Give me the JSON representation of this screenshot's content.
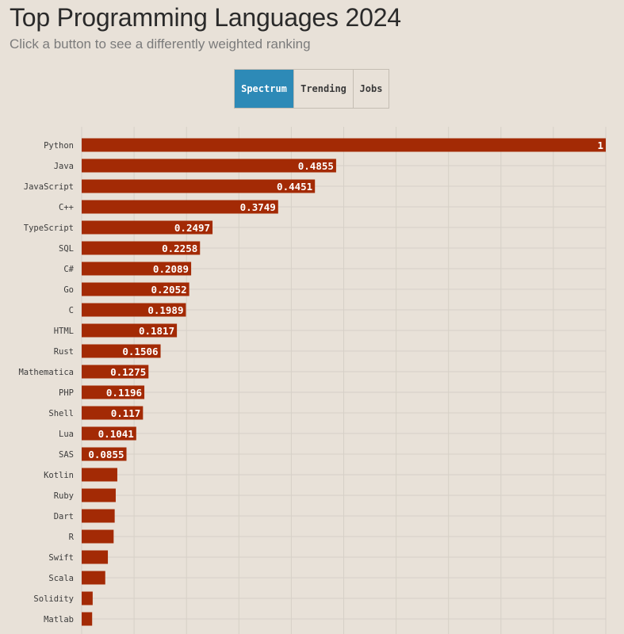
{
  "chart_data": {
    "type": "bar",
    "orientation": "horizontal",
    "title": "Top Programming Languages 2024",
    "subtitle": "Click a button to see a differently weighted ranking",
    "categories": [
      "Python",
      "Java",
      "JavaScript",
      "C++",
      "TypeScript",
      "SQL",
      "C#",
      "Go",
      "C",
      "HTML",
      "Rust",
      "Mathematica",
      "PHP",
      "Shell",
      "Lua",
      "SAS",
      "Kotlin",
      "Ruby",
      "Dart",
      "R",
      "Swift",
      "Scala",
      "Solidity",
      "Matlab"
    ],
    "values": [
      1,
      0.4855,
      0.4451,
      0.3749,
      0.2497,
      0.2258,
      0.2089,
      0.2052,
      0.1989,
      0.1817,
      0.1506,
      0.1275,
      0.1196,
      0.117,
      0.1041,
      0.0855,
      0.068,
      0.065,
      0.063,
      0.061,
      0.05,
      0.045,
      0.021,
      0.02
    ],
    "data_labels": [
      "1",
      "0.4855",
      "0.4451",
      "0.3749",
      "0.2497",
      "0.2258",
      "0.2089",
      "0.2052",
      "0.1989",
      "0.1817",
      "0.1506",
      "0.1275",
      "0.1196",
      "0.117",
      "0.1041",
      "0.0855",
      "",
      "",
      "",
      "",
      "",
      "",
      "",
      ""
    ],
    "xlim": [
      0,
      1
    ],
    "grid": true,
    "bar_color": "#a32a05",
    "grid_color": "#d6d0c7",
    "label_color": "#ffffff"
  },
  "controls": {
    "buttons": [
      {
        "label": "Spectrum",
        "active": true
      },
      {
        "label": "Trending",
        "active": false
      },
      {
        "label": "Jobs",
        "active": false
      }
    ],
    "active_color": "#2d8ab7"
  }
}
